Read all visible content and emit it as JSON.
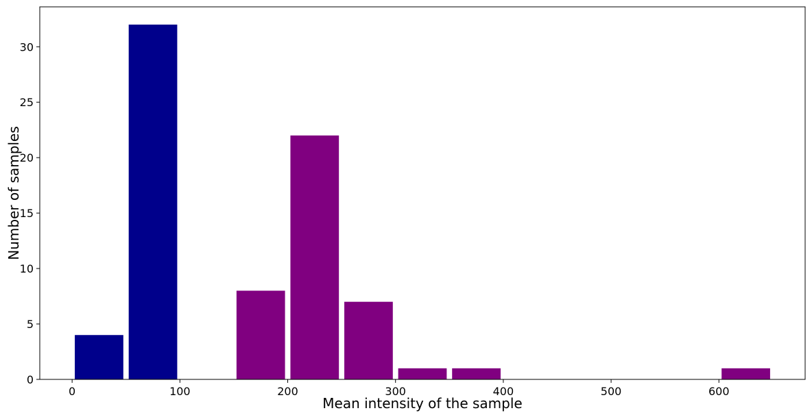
{
  "chart_data": {
    "type": "bar",
    "title": "",
    "xlabel": "Mean intensity of the sample",
    "ylabel": "Number of samples",
    "xlim": [
      -30,
      680
    ],
    "ylim": [
      0,
      33.6
    ],
    "grid": false,
    "bins": [
      {
        "start": 0,
        "end": 50,
        "value": 4,
        "color": "#00008b"
      },
      {
        "start": 50,
        "end": 100,
        "value": 32,
        "color": "#00008b"
      },
      {
        "start": 150,
        "end": 200,
        "value": 8,
        "color": "#800080"
      },
      {
        "start": 200,
        "end": 250,
        "value": 22,
        "color": "#800080"
      },
      {
        "start": 250,
        "end": 300,
        "value": 7,
        "color": "#800080"
      },
      {
        "start": 300,
        "end": 350,
        "value": 1,
        "color": "#800080"
      },
      {
        "start": 350,
        "end": 400,
        "value": 1,
        "color": "#800080"
      },
      {
        "start": 600,
        "end": 650,
        "value": 1,
        "color": "#800080"
      }
    ],
    "x_ticks": [
      {
        "value": 0,
        "label": "0"
      },
      {
        "value": 100,
        "label": "100"
      },
      {
        "value": 200,
        "label": "200"
      },
      {
        "value": 300,
        "label": "300"
      },
      {
        "value": 400,
        "label": "400"
      },
      {
        "value": 500,
        "label": "500"
      },
      {
        "value": 600,
        "label": "600"
      }
    ],
    "y_ticks": [
      {
        "value": 0,
        "label": "0"
      },
      {
        "value": 5,
        "label": "5"
      },
      {
        "value": 10,
        "label": "10"
      },
      {
        "value": 15,
        "label": "15"
      },
      {
        "value": 20,
        "label": "20"
      },
      {
        "value": 25,
        "label": "25"
      },
      {
        "value": 30,
        "label": "30"
      }
    ]
  }
}
